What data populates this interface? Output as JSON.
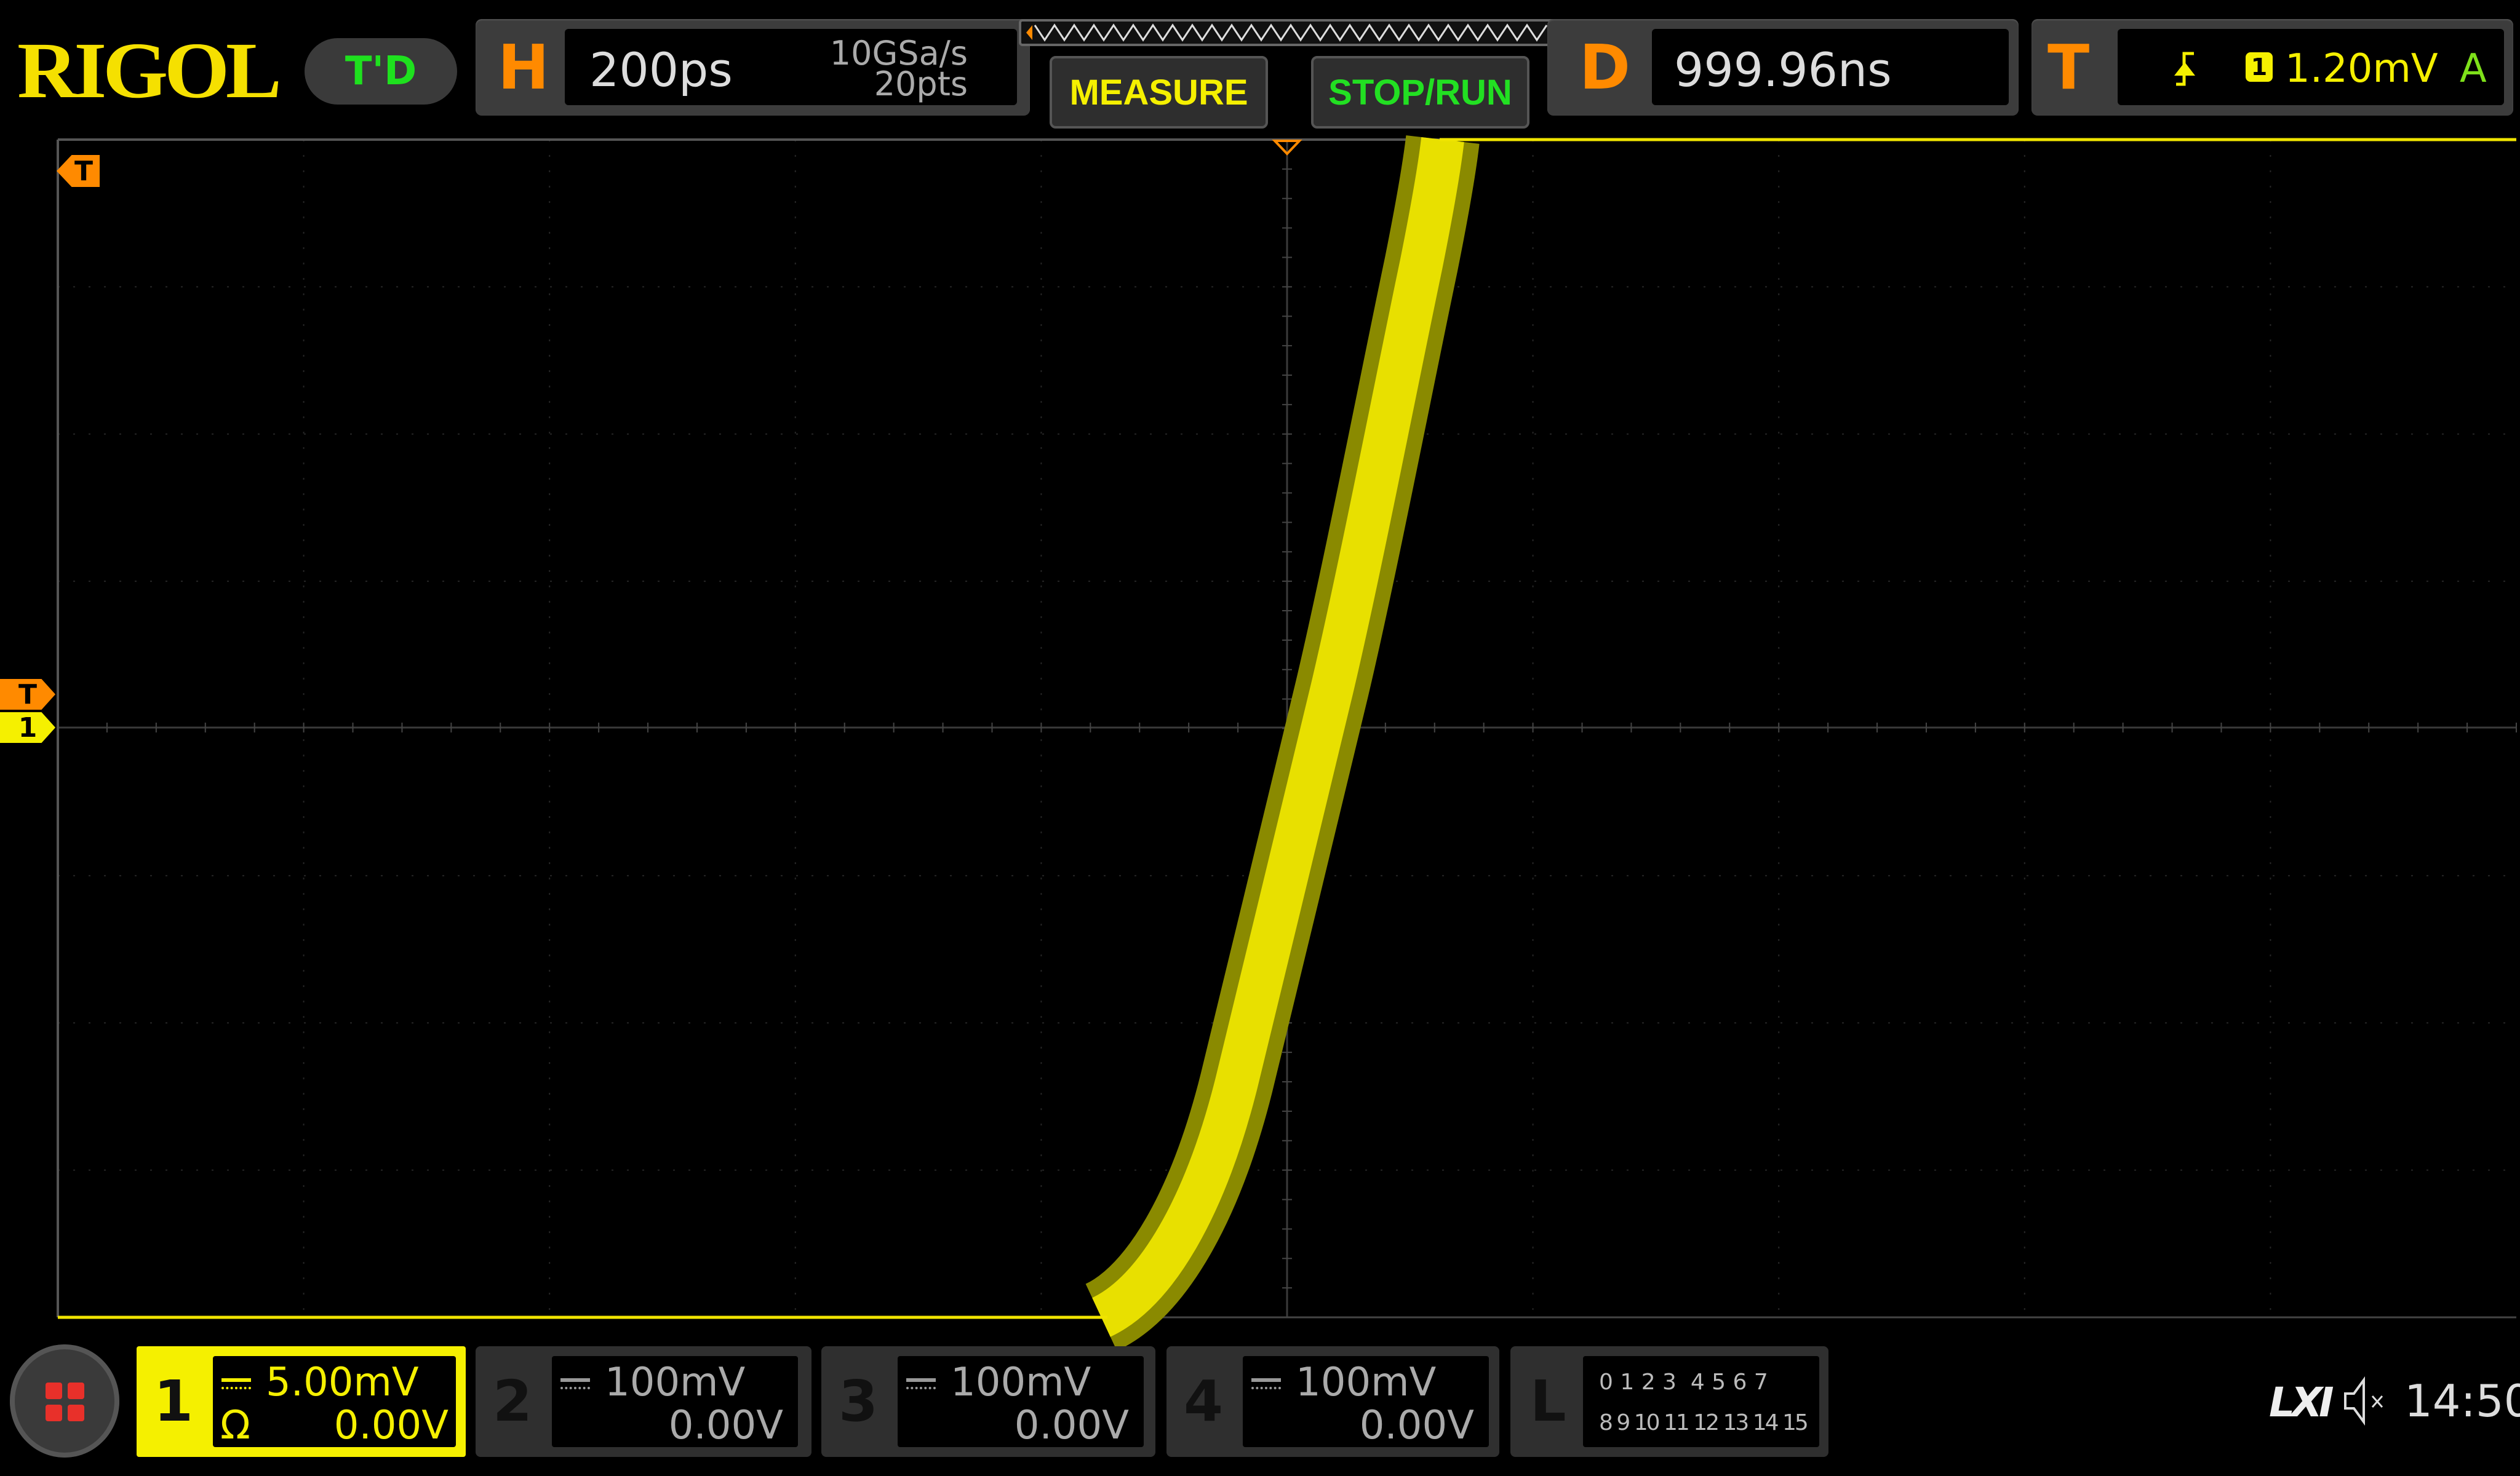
{
  "header": {
    "logo": "RIGOL",
    "mode_button": "T'D",
    "horizontal": {
      "letter": "H",
      "timebase": "200ps",
      "sample_rate": "10GSa/s",
      "memory_depth": "20pts"
    },
    "measure_button": "MEASURE",
    "stop_run_button": "STOP/RUN",
    "delay": {
      "letter": "D",
      "value": "999.96ns"
    },
    "trigger": {
      "letter": "T",
      "source": "1",
      "level": "1.20mV",
      "mode": "A",
      "slope_icon": "rising-edge-icon"
    }
  },
  "display": {
    "trigger_position_marker": "T",
    "trigger_level_marker": "T",
    "channel_marker": "1",
    "colors": {
      "channel1": "#f5e600",
      "trigger": "#ff8a00",
      "grid": "#3a3a3a"
    }
  },
  "channels": [
    {
      "number": "1",
      "scale": "5.00mV",
      "offset": "0.00V",
      "impedance_symbol": "Ω",
      "active": true
    },
    {
      "number": "2",
      "scale": "100mV",
      "offset": "0.00V",
      "active": false
    },
    {
      "number": "3",
      "scale": "100mV",
      "offset": "0.00V",
      "active": false
    },
    {
      "number": "4",
      "scale": "100mV",
      "offset": "0.00V",
      "active": false
    }
  ],
  "logic": {
    "letter": "L",
    "row1": "0 1 2 3  4 5 6 7",
    "row2": "8 9 10 11 12 13 14 15"
  },
  "status": {
    "lxi": "LXI",
    "sound_icon": "speaker-muted-icon",
    "time": "14:50"
  }
}
